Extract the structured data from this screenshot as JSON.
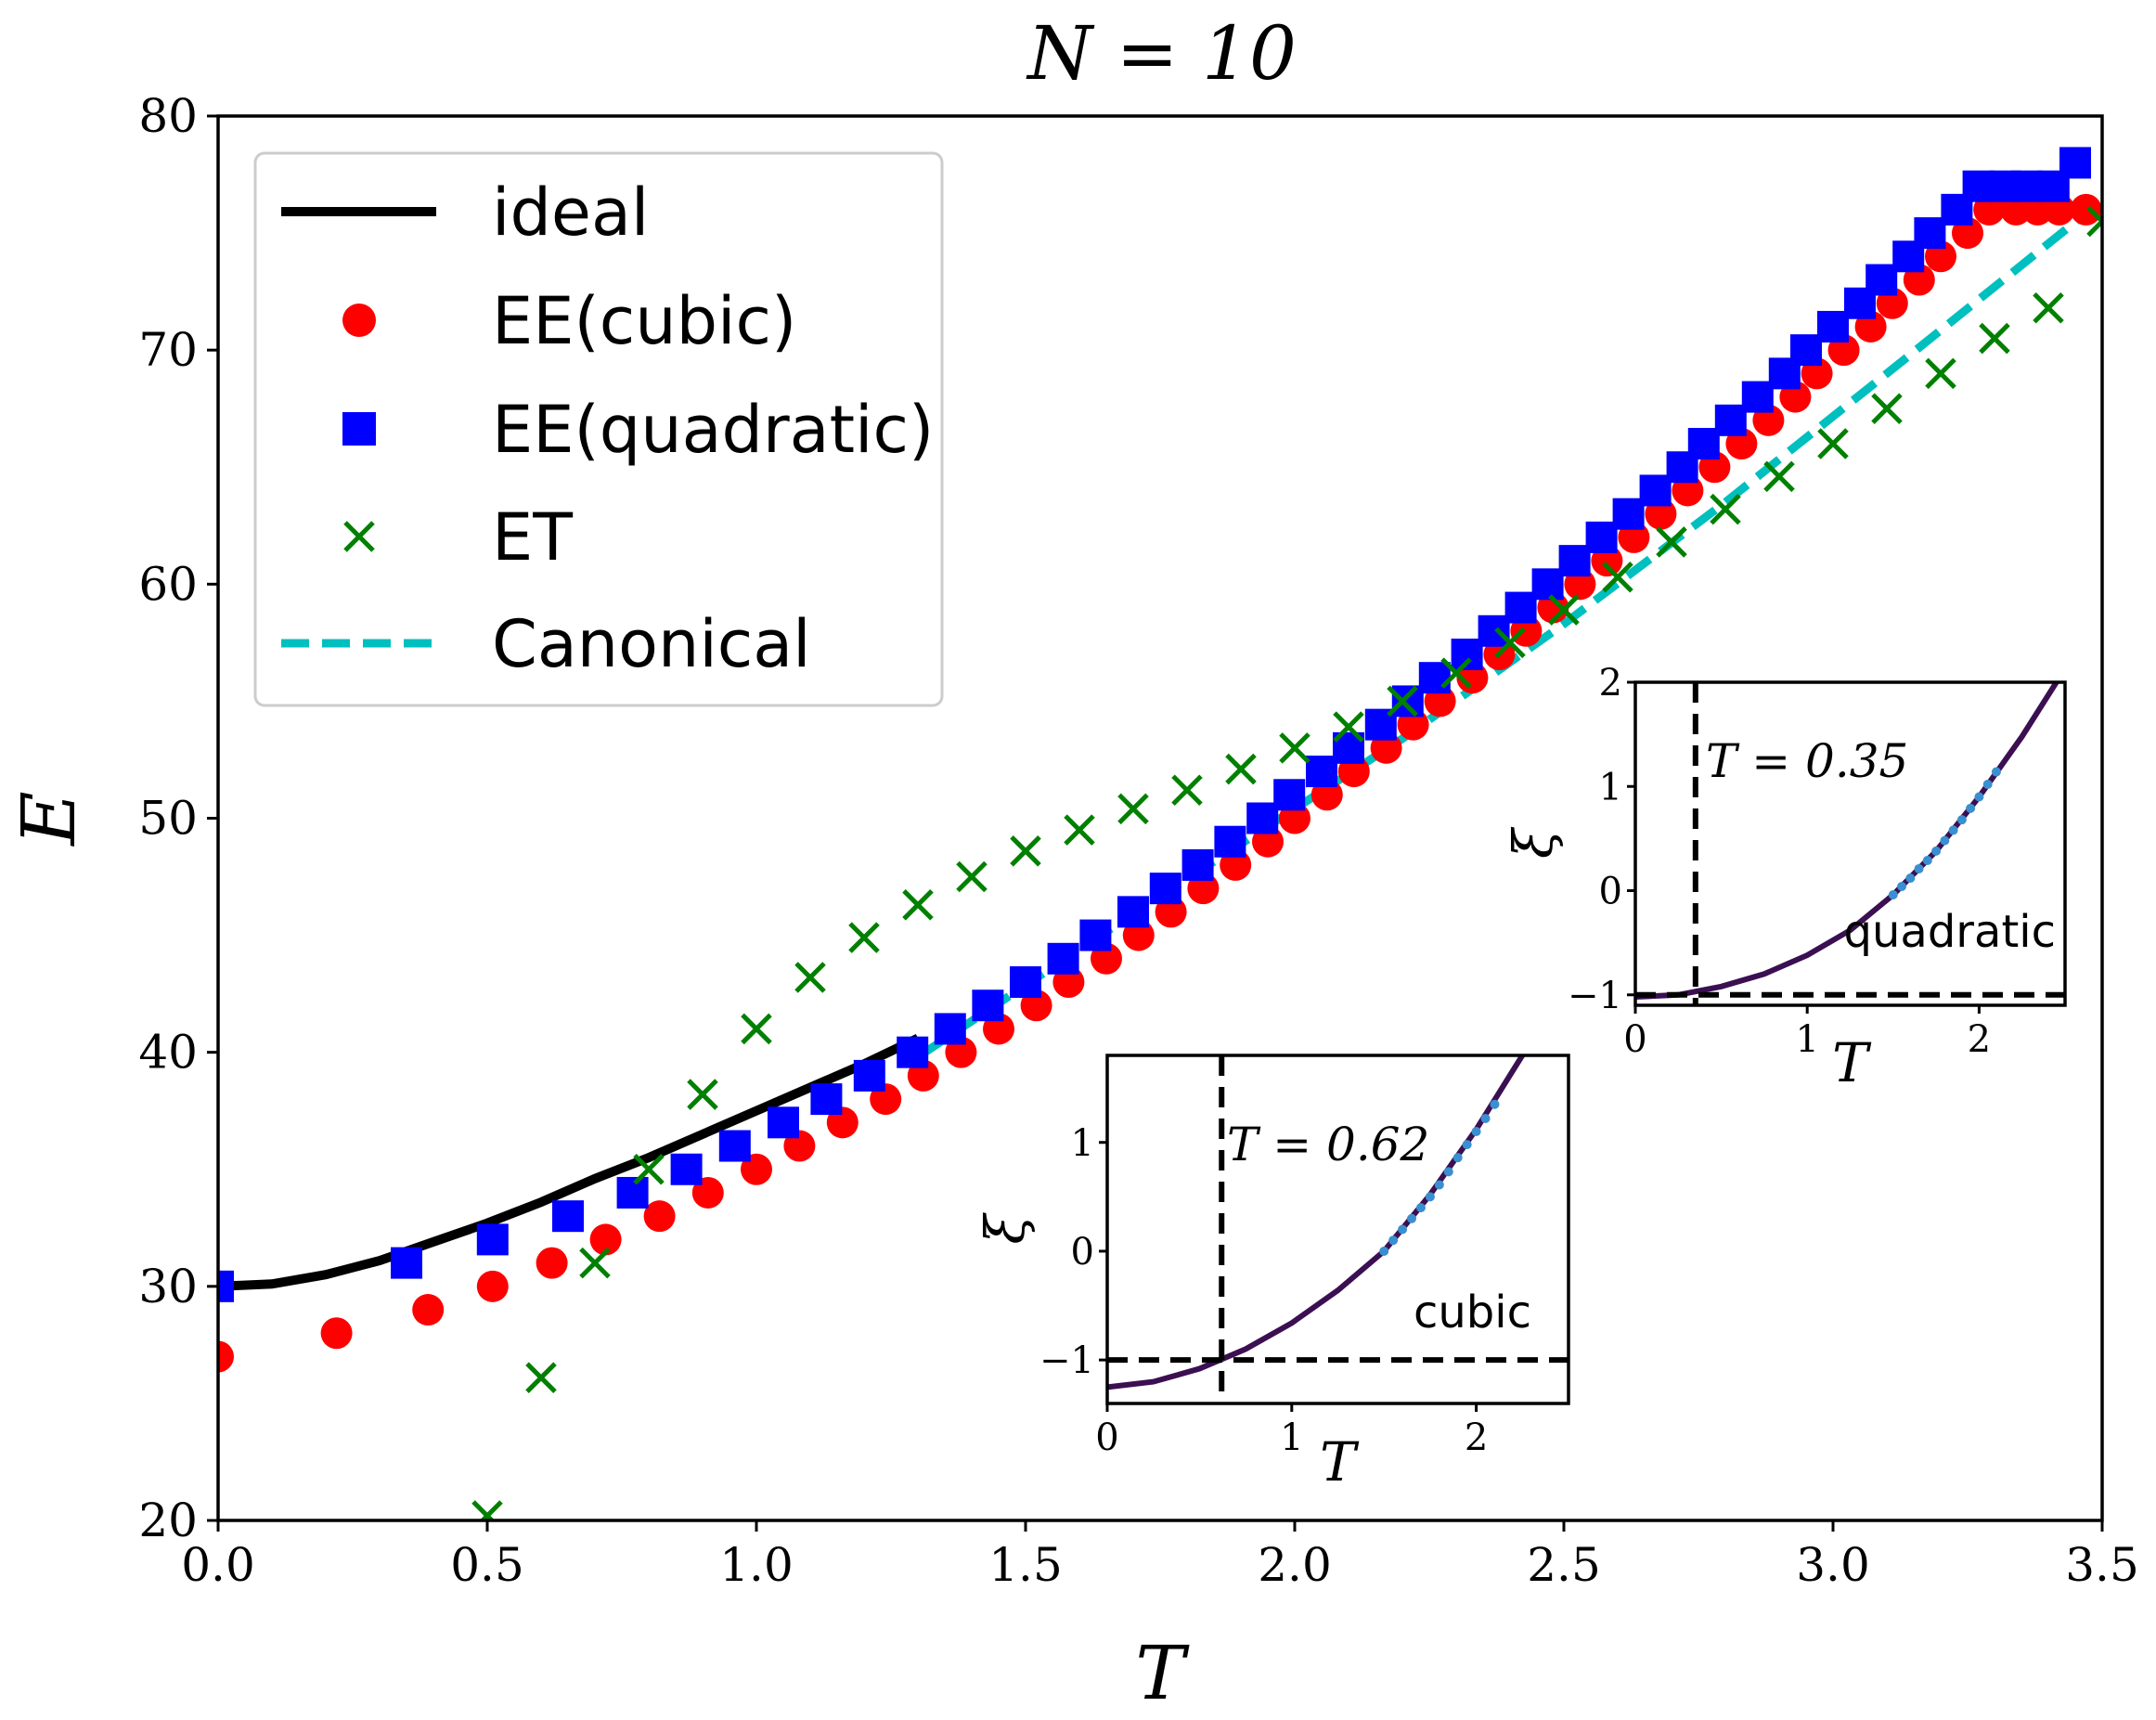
{
  "chart_data": {
    "type": "scatter",
    "title": "N = 10",
    "xlabel": "T",
    "ylabel": "E",
    "xlim": [
      0.0,
      3.5
    ],
    "ylim": [
      20,
      80
    ],
    "xticks": [
      "0.0",
      "0.5",
      "1.0",
      "1.5",
      "2.0",
      "2.5",
      "3.0",
      "3.5"
    ],
    "yticks": [
      "20",
      "30",
      "40",
      "50",
      "60",
      "70",
      "80"
    ],
    "legend_position": "top-left",
    "series": [
      {
        "name": "ideal",
        "kind": "line",
        "color": "#000000",
        "x": [
          0.0,
          0.1,
          0.2,
          0.3,
          0.4,
          0.5,
          0.6,
          0.7,
          0.8,
          0.9,
          1.0,
          1.1,
          1.2,
          1.3
        ],
        "y": [
          30.0,
          30.1,
          30.5,
          31.1,
          31.9,
          32.7,
          33.6,
          34.6,
          35.5,
          36.5,
          37.5,
          38.5,
          39.5,
          40.6
        ]
      },
      {
        "name": "EE(cubic)",
        "kind": "marker-circle",
        "color": "#ff0000",
        "x": [
          0.0,
          0.22,
          0.39,
          0.51,
          0.62,
          0.72,
          0.82,
          0.91,
          1.0,
          1.08,
          1.16,
          1.24,
          1.31,
          1.38,
          1.45,
          1.52,
          1.58,
          1.65,
          1.71,
          1.77,
          1.83,
          1.89,
          1.95,
          2.0,
          2.06,
          2.11,
          2.17,
          2.22,
          2.27,
          2.33,
          2.38,
          2.43,
          2.48,
          2.53,
          2.58,
          2.63,
          2.68,
          2.73,
          2.78,
          2.83,
          2.88,
          2.93,
          2.97,
          3.02,
          3.07,
          3.11,
          3.16,
          3.2,
          3.25,
          3.29,
          3.34,
          3.38,
          3.42,
          3.47
        ],
        "y": [
          27,
          28,
          29,
          30,
          31,
          32,
          33,
          34,
          35,
          36,
          37,
          38,
          39,
          40,
          41,
          42,
          43,
          44,
          45,
          46,
          47,
          48,
          49,
          50,
          51,
          52,
          53,
          54,
          55,
          56,
          57,
          58,
          59,
          60,
          61,
          62,
          63,
          64,
          65,
          66,
          67,
          68,
          69,
          70,
          71,
          72,
          73,
          74,
          75,
          76,
          76,
          76,
          76,
          76
        ]
      },
      {
        "name": "EE(quadratic)",
        "kind": "marker-square",
        "color": "#0000ff",
        "x": [
          0.0,
          0.35,
          0.51,
          0.65,
          0.77,
          0.87,
          0.96,
          1.05,
          1.13,
          1.21,
          1.29,
          1.36,
          1.43,
          1.5,
          1.57,
          1.63,
          1.7,
          1.76,
          1.82,
          1.88,
          1.94,
          1.99,
          2.05,
          2.1,
          2.16,
          2.21,
          2.26,
          2.32,
          2.37,
          2.42,
          2.47,
          2.52,
          2.57,
          2.62,
          2.67,
          2.72,
          2.76,
          2.81,
          2.86,
          2.91,
          2.95,
          3.0,
          3.05,
          3.09,
          3.14,
          3.18,
          3.23,
          3.27,
          3.32,
          3.36,
          3.41,
          3.45
        ],
        "y": [
          30,
          31,
          32,
          33,
          34,
          35,
          36,
          37,
          38,
          39,
          40,
          41,
          42,
          43,
          44,
          45,
          46,
          47,
          48,
          49,
          50,
          51,
          52,
          53,
          54,
          55,
          56,
          57,
          58,
          59,
          60,
          61,
          62,
          63,
          64,
          65,
          66,
          67,
          68,
          69,
          70,
          71,
          72,
          73,
          74,
          75,
          76,
          77,
          77,
          77,
          77,
          78
        ]
      },
      {
        "name": "ET",
        "kind": "marker-x",
        "color": "#008000",
        "x": [
          0.5,
          0.6,
          0.7,
          0.8,
          0.9,
          1.0,
          1.1,
          1.2,
          1.3,
          1.4,
          1.5,
          1.6,
          1.7,
          1.8,
          1.9,
          2.0,
          2.1,
          2.2,
          2.3,
          2.4,
          2.5,
          2.6,
          2.7,
          2.8,
          2.9,
          3.0,
          3.1,
          3.2,
          3.3,
          3.4,
          3.5
        ],
        "y": [
          20.2,
          26.1,
          31.0,
          35.0,
          38.2,
          41.0,
          43.2,
          44.9,
          46.3,
          47.5,
          48.6,
          49.5,
          50.4,
          51.2,
          52.1,
          53.0,
          53.9,
          55.0,
          56.2,
          57.5,
          58.9,
          60.3,
          61.8,
          63.2,
          64.6,
          66.0,
          67.5,
          69.0,
          70.5,
          71.8,
          75.5
        ]
      },
      {
        "name": "Canonical",
        "kind": "dashed-line",
        "color": "#00bfbf",
        "x": [
          1.3,
          1.6,
          1.9,
          2.2,
          2.5,
          2.8,
          3.1,
          3.5
        ],
        "y": [
          39.8,
          44.4,
          48.9,
          53.4,
          58.3,
          63.5,
          69.0,
          76.4
        ]
      }
    ],
    "insets": [
      {
        "name": "quadratic",
        "label": "quadratic",
        "annotation": "T = 0.35",
        "xlabel": "T",
        "ylabel": "ξ",
        "xlim": [
          0,
          2.5
        ],
        "ylim": [
          -1.1,
          2
        ],
        "xticks": [
          "0",
          "1",
          "2"
        ],
        "yticks": [
          "−1",
          "0",
          "1",
          "2"
        ],
        "vline_x": 0.35,
        "hline_y": -1,
        "curve": {
          "x": [
            0,
            0.25,
            0.5,
            0.75,
            1.0,
            1.25,
            1.5,
            1.75,
            2.0,
            2.25,
            2.45
          ],
          "y": [
            -1.02,
            -1.0,
            -0.92,
            -0.8,
            -0.62,
            -0.38,
            -0.04,
            0.38,
            0.9,
            1.48,
            2.0
          ]
        },
        "dots": {
          "x": [
            1.5,
            1.55,
            1.6,
            1.65,
            1.7,
            1.75,
            1.8,
            1.85,
            1.9,
            1.95,
            2.0,
            2.05,
            2.1
          ],
          "y": [
            -0.04,
            0.04,
            0.12,
            0.21,
            0.29,
            0.38,
            0.48,
            0.58,
            0.68,
            0.79,
            0.9,
            1.02,
            1.14
          ]
        }
      },
      {
        "name": "cubic",
        "label": "cubic",
        "annotation": "T = 0.62",
        "xlabel": "T",
        "ylabel": "ξ",
        "xlim": [
          0,
          2.5
        ],
        "ylim": [
          -1.4,
          1.8
        ],
        "xticks": [
          "0",
          "1",
          "2"
        ],
        "yticks": [
          "−1",
          "0",
          "1"
        ],
        "vline_x": 0.62,
        "hline_y": -1,
        "curve": {
          "x": [
            0,
            0.25,
            0.5,
            0.75,
            1.0,
            1.25,
            1.5,
            1.75,
            2.0,
            2.25
          ],
          "y": [
            -1.25,
            -1.2,
            -1.08,
            -0.9,
            -0.66,
            -0.36,
            0.0,
            0.52,
            1.12,
            1.8
          ]
        },
        "dots": {
          "x": [
            1.5,
            1.55,
            1.6,
            1.65,
            1.7,
            1.75,
            1.8,
            1.85,
            1.9,
            1.95,
            2.0,
            2.05,
            2.1
          ],
          "y": [
            0.0,
            0.1,
            0.2,
            0.3,
            0.4,
            0.5,
            0.61,
            0.73,
            0.86,
            0.98,
            1.1,
            1.22,
            1.35
          ]
        }
      }
    ]
  }
}
